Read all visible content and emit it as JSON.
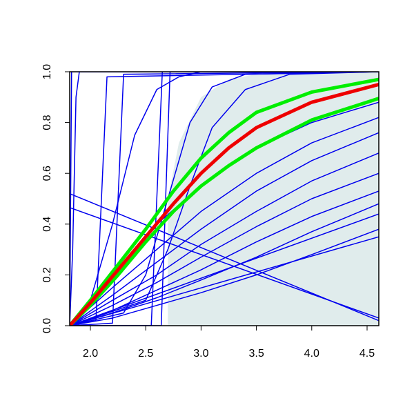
{
  "chart_data": {
    "type": "line",
    "xlim": [
      1.813,
      4.606
    ],
    "ylim": [
      0,
      1
    ],
    "xticks": [
      {
        "value": 2,
        "label": "2.0"
      },
      2.5,
      {
        "value": 3,
        "label": "3.0"
      },
      3.5,
      {
        "value": 4,
        "label": "4.0"
      },
      4.5
    ],
    "yticks": [
      {
        "value": 0,
        "label": "0.0"
      },
      0.2,
      0.4,
      0.6,
      0.8,
      {
        "value": 1,
        "label": "1.0"
      }
    ],
    "band": {
      "color": "#e0ecec",
      "x": [
        2.7,
        2.7,
        2.8,
        3.0,
        3.25,
        3.5,
        4.0,
        4.606,
        4.606
      ],
      "values": [
        0,
        0.5,
        0.72,
        0.9,
        0.97,
        0.99,
        1,
        1,
        0
      ]
    },
    "series": [
      {
        "color": "#0000ee",
        "width": 1.5,
        "x": [
          1.813,
          1.84,
          1.87,
          1.9,
          4.606
        ],
        "values": [
          0,
          0.3,
          0.9,
          1,
          1
        ]
      },
      {
        "color": "#0000ee",
        "width": 1.5,
        "x": [
          1.813,
          1.83,
          4.606
        ],
        "values": [
          0,
          1,
          1
        ]
      },
      {
        "color": "#0000ee",
        "width": 1.5,
        "x": [
          1.813,
          2.05,
          2.1,
          2.15,
          4.606
        ],
        "values": [
          0,
          0.02,
          0.5,
          0.98,
          1
        ]
      },
      {
        "color": "#0000ee",
        "width": 1.5,
        "x": [
          1.813,
          2.2,
          2.25,
          2.3,
          4.606
        ],
        "values": [
          0,
          0.01,
          0.5,
          0.99,
          1
        ]
      },
      {
        "color": "#0000ee",
        "width": 1.5,
        "x": [
          1.813,
          2.55,
          2.6,
          2.65,
          4.606
        ],
        "values": [
          0,
          0,
          0.5,
          1,
          1
        ]
      },
      {
        "color": "#0000ee",
        "width": 1.5,
        "x": [
          1.813,
          2.64,
          2.68,
          2.72,
          4.606
        ],
        "values": [
          0,
          0,
          0.5,
          1,
          1
        ]
      },
      {
        "color": "#0000ee",
        "width": 1.5,
        "x": [
          1.813,
          2.0,
          2.2,
          2.4,
          2.6,
          2.8,
          3.0,
          4.606
        ],
        "values": [
          0,
          0.1,
          0.4,
          0.75,
          0.93,
          0.98,
          1,
          1
        ]
      },
      {
        "color": "#0000ee",
        "width": 1.5,
        "x": [
          1.813,
          2.3,
          2.5,
          2.7,
          2.9,
          3.1,
          3.4,
          4.606
        ],
        "values": [
          0,
          0.05,
          0.2,
          0.5,
          0.8,
          0.94,
          0.99,
          1
        ]
      },
      {
        "color": "#0000ee",
        "width": 1.5,
        "x": [
          1.813,
          2.5,
          2.7,
          2.9,
          3.1,
          3.4,
          3.8,
          4.606
        ],
        "values": [
          0,
          0.1,
          0.3,
          0.55,
          0.78,
          0.93,
          0.99,
          1
        ]
      },
      {
        "color": "#0000ee",
        "width": 1.5,
        "x": [
          1.813,
          2.2,
          2.6,
          3.0,
          3.5,
          4.0,
          4.606
        ],
        "values": [
          0,
          0.2,
          0.4,
          0.55,
          0.7,
          0.8,
          0.88
        ]
      },
      {
        "color": "#0000ee",
        "width": 1.5,
        "x": [
          1.813,
          2.2,
          2.6,
          3.0,
          3.5,
          4.0,
          4.606
        ],
        "values": [
          0,
          0.15,
          0.3,
          0.45,
          0.6,
          0.72,
          0.82
        ]
      },
      {
        "color": "#0000ee",
        "width": 1.5,
        "x": [
          1.813,
          2.2,
          2.6,
          3.0,
          3.5,
          4.0,
          4.606
        ],
        "values": [
          0,
          0.12,
          0.25,
          0.38,
          0.53,
          0.65,
          0.76
        ]
      },
      {
        "color": "#0000ee",
        "width": 1.5,
        "x": [
          1.813,
          2.2,
          2.6,
          3.0,
          3.5,
          4.0,
          4.606
        ],
        "values": [
          0,
          0.1,
          0.2,
          0.32,
          0.45,
          0.57,
          0.68
        ]
      },
      {
        "color": "#0000ee",
        "width": 1.5,
        "x": [
          1.813,
          2.2,
          2.6,
          3.0,
          3.5,
          4.0,
          4.606
        ],
        "values": [
          0,
          0.08,
          0.17,
          0.27,
          0.39,
          0.5,
          0.6
        ]
      },
      {
        "color": "#0000ee",
        "width": 1.5,
        "x": [
          1.813,
          2.2,
          2.6,
          3.0,
          3.5,
          4.0,
          4.606
        ],
        "values": [
          0,
          0.06,
          0.14,
          0.22,
          0.33,
          0.43,
          0.53
        ]
      },
      {
        "color": "#0000ee",
        "width": 1.5,
        "x": [
          1.813,
          2.2,
          2.6,
          3.0,
          3.5,
          4.0,
          4.606
        ],
        "values": [
          0,
          0.05,
          0.11,
          0.18,
          0.27,
          0.37,
          0.48
        ]
      },
      {
        "color": "#0000ee",
        "width": 1.5,
        "x": [
          1.813,
          2.2,
          2.6,
          3.0,
          3.5,
          4.0,
          4.606
        ],
        "values": [
          0,
          0.03,
          0.08,
          0.13,
          0.2,
          0.28,
          0.38
        ]
      },
      {
        "color": "#0000ee",
        "width": 1.5,
        "x": [
          1.813,
          4.606
        ],
        "values": [
          0.52,
          0.02
        ]
      },
      {
        "color": "#0000ee",
        "width": 1.5,
        "x": [
          1.813,
          4.606
        ],
        "values": [
          0.465,
          0.03
        ]
      },
      {
        "color": "#0000ee",
        "width": 1.5,
        "x": [
          1.813,
          4.606
        ],
        "values": [
          0,
          0.35
        ]
      },
      {
        "color": "#0000ee",
        "width": 1.5,
        "x": [
          1.813,
          4.606
        ],
        "values": [
          0,
          0.44
        ]
      },
      {
        "color": "#00ee00",
        "width": 5,
        "x": [
          1.813,
          2.0,
          2.25,
          2.5,
          2.75,
          3.0,
          3.25,
          3.5,
          4.0,
          4.606
        ],
        "values": [
          0,
          0.1,
          0.24,
          0.38,
          0.53,
          0.66,
          0.76,
          0.84,
          0.92,
          0.97
        ]
      },
      {
        "color": "#00ee00",
        "width": 5,
        "x": [
          1.813,
          2.0,
          2.25,
          2.5,
          2.75,
          3.0,
          3.25,
          3.5,
          4.0,
          4.606
        ],
        "values": [
          0,
          0.08,
          0.2,
          0.33,
          0.45,
          0.55,
          0.63,
          0.7,
          0.81,
          0.895
        ]
      },
      {
        "color": "#ee0000",
        "width": 5,
        "x": [
          1.813,
          2.0,
          2.25,
          2.5,
          2.75,
          3.0,
          3.25,
          3.5,
          4.0,
          4.606
        ],
        "values": [
          0,
          0.09,
          0.22,
          0.35,
          0.48,
          0.6,
          0.7,
          0.78,
          0.88,
          0.95
        ]
      }
    ]
  }
}
